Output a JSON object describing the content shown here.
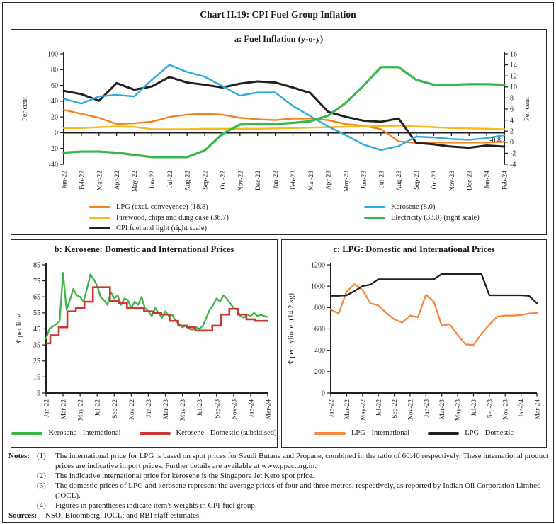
{
  "figure": {
    "title": "Chart II.19: CPI Fuel Group Inflation"
  },
  "colors": {
    "axis": "#231F20",
    "lpg_orange": "#F58220",
    "firewood_yellow": "#FDB913",
    "cpi_black": "#231F20",
    "kerosene_blue": "#29ABE2",
    "electricity_green": "#39B54A",
    "kerosene_intl_green": "#3BB54A",
    "kerosene_dom_red": "#CB3734",
    "lpg_intl_orange": "#F6873C",
    "lpg_dom_black": "#231F20"
  },
  "chart_data": [
    {
      "id": "a",
      "type": "line",
      "title": "a: Fuel Inflation (y-o-y)",
      "x_labels": [
        "Jan-22",
        "Feb-22",
        "Mar-22",
        "Apr-22",
        "May-22",
        "Jun-22",
        "Jul-22",
        "Aug-22",
        "Sep-22",
        "Oct-22",
        "Nov-22",
        "Dec-22",
        "Jan-23",
        "Feb-23",
        "Mar-23",
        "Apr-23",
        "May-23",
        "Jun-23",
        "Jul-23",
        "Aug-23",
        "Sep-23",
        "Oct-23",
        "Nov-23",
        "Dec-23",
        "Jan-24",
        "Feb-24"
      ],
      "label_every": 1,
      "x_axis_at": 0,
      "left_axis": {
        "min": -40,
        "max": 100,
        "step": 20,
        "label": "Per cent"
      },
      "right_axis": {
        "min": -4,
        "max": 16,
        "step": 2,
        "label": "Per cent"
      },
      "series": [
        {
          "name": "LPG (excl. conveyence) (18.8)",
          "color": "#F58220",
          "axis": "left",
          "width": 2.4,
          "values": [
            29,
            24,
            19,
            11,
            12,
            14,
            20,
            23,
            24,
            23,
            19,
            17,
            16,
            18,
            18,
            16,
            11,
            9,
            4.5,
            -11,
            -13,
            -12.5,
            -12.5,
            -12.5,
            -12.5,
            -11.5
          ]
        },
        {
          "name": "Firewood, chips and dung cake (36.7)",
          "color": "#FDB913",
          "axis": "left",
          "width": 2.4,
          "values": [
            6,
            6,
            7,
            8,
            7.5,
            4.5,
            4.5,
            4.5,
            5,
            5,
            5,
            5,
            5.5,
            6,
            6.5,
            7,
            7.5,
            8,
            8.5,
            9,
            8,
            7,
            6,
            5.5,
            5,
            4.5
          ]
        },
        {
          "name": "CPI fuel and light (right scale)",
          "color": "#231F20",
          "axis": "right",
          "width": 3,
          "values": [
            9.3,
            8.7,
            7.5,
            10.7,
            9.5,
            10.1,
            11.8,
            10.8,
            10.4,
            9.9,
            10.6,
            11.0,
            10.8,
            9.9,
            8.9,
            5.5,
            4.6,
            3.9,
            3.7,
            4.3,
            -0.1,
            -0.4,
            -0.8,
            -1.0,
            -0.6,
            -0.8
          ]
        },
        {
          "name": "Kerosene (8.0)",
          "color": "#29ABE2",
          "axis": "left",
          "width": 2.4,
          "values": [
            43,
            37,
            46,
            48,
            46,
            67,
            86,
            77,
            71,
            59,
            47,
            51,
            51,
            34,
            21,
            8,
            -3,
            -15,
            -22,
            -17,
            -5,
            -6,
            -8,
            -9,
            -7,
            -3
          ]
        },
        {
          "name": "Electricity (33.0) (right scale)",
          "color": "#39B54A",
          "axis": "right",
          "width": 3.2,
          "values": [
            -1.9,
            -1.7,
            -1.7,
            -1.9,
            -2.3,
            -2.7,
            -2.7,
            -2.7,
            -1.5,
            1.5,
            3.2,
            3.3,
            3.3,
            3.5,
            3.8,
            4.8,
            7.1,
            10.2,
            13.6,
            13.6,
            11.3,
            10.4,
            10.4,
            10.5,
            10.5,
            10.4
          ]
        }
      ],
      "annotation": {
        "text": "-0.8",
        "x_index": 25,
        "axis": "right",
        "value": -0.8
      }
    },
    {
      "id": "b",
      "type": "line",
      "title": "b: Kerosene: Domestic and International Prices",
      "x_labels": [
        "Jan-22",
        "Feb-22",
        "Mar-22",
        "Apr-22",
        "May-22",
        "Jun-22",
        "Jul-22",
        "Aug-22",
        "Sep-22",
        "Oct-22",
        "Nov-22",
        "Dec-22",
        "Jan-23",
        "Feb-23",
        "Mar-23",
        "Apr-23",
        "May-23",
        "Jun-23",
        "Jul-23",
        "Aug-23",
        "Sep-23",
        "Oct-23",
        "Nov-23",
        "Dec-23",
        "Jan-24",
        "Feb-24",
        "Mar-24"
      ],
      "label_every": 2,
      "x_axis_at": 5,
      "left_axis": {
        "min": 5,
        "max": 85,
        "step": 10,
        "label": "₹ per litre"
      },
      "series": [
        {
          "name": "Kerosene - International",
          "color": "#3BB54A",
          "axis": "left",
          "width": 2.3,
          "values": [
            39,
            45,
            46.5,
            48,
            50,
            80,
            57,
            63,
            70,
            66,
            65,
            62,
            70,
            79,
            76,
            72,
            65,
            63,
            60,
            68,
            64,
            66,
            60,
            64,
            63,
            58,
            62,
            60,
            65,
            58,
            56,
            53,
            58,
            55,
            52,
            56,
            53,
            54,
            50,
            48,
            46,
            47,
            45,
            44.5,
            46,
            45,
            47,
            52,
            57,
            60,
            64,
            62,
            66,
            64,
            61,
            58,
            57,
            53,
            52,
            54,
            53,
            55,
            53,
            54,
            53,
            52.5
          ]
        },
        {
          "name": "Kerosene - Domestic (subsidised)",
          "color": "#CB3734",
          "axis": "left",
          "width": 2.6,
          "step": true,
          "values": [
            36,
            41,
            46,
            56,
            58,
            62,
            71,
            71,
            62.5,
            61,
            58,
            58,
            56,
            55,
            54,
            50,
            47,
            46,
            44,
            44,
            47,
            54,
            57.5,
            54,
            51,
            50,
            50
          ]
        }
      ]
    },
    {
      "id": "c",
      "type": "line",
      "title": "c: LPG: Domestic and International Prices",
      "x_labels": [
        "Jan-22",
        "Feb-22",
        "Mar-22",
        "Apr-22",
        "May-22",
        "Jun-22",
        "Jul-22",
        "Aug-22",
        "Sep-22",
        "Oct-22",
        "Nov-22",
        "Dec-22",
        "Jan-23",
        "Feb-23",
        "Mar-23",
        "Apr-23",
        "May-23",
        "Jun-23",
        "Jul-23",
        "Aug-23",
        "Sep-23",
        "Oct-23",
        "Nov-23",
        "Dec-23",
        "Jan-24",
        "Feb-24",
        "Mar-24"
      ],
      "label_every": 2,
      "x_axis_at": 0,
      "left_axis": {
        "min": 0,
        "max": 1200,
        "step": 200,
        "label": "₹ per cylinder (14.2 kg)"
      },
      "series": [
        {
          "name": "LPG - International",
          "color": "#F6873C",
          "axis": "left",
          "width": 2.3,
          "values": [
            780,
            745,
            950,
            1020,
            965,
            840,
            820,
            750,
            690,
            660,
            725,
            710,
            920,
            855,
            630,
            645,
            545,
            455,
            450,
            555,
            640,
            715,
            725,
            725,
            730,
            745,
            750
          ]
        },
        {
          "name": "LPG - Domestic",
          "color": "#231F20",
          "axis": "left",
          "width": 2.3,
          "values": [
            910,
            910,
            915,
            955,
            1000,
            1015,
            1065,
            1065,
            1065,
            1065,
            1065,
            1065,
            1065,
            1065,
            1115,
            1115,
            1115,
            1115,
            1115,
            1115,
            915,
            915,
            915,
            915,
            915,
            910,
            840
          ]
        }
      ]
    }
  ],
  "notes": {
    "label": "Notes:",
    "items": [
      {
        "num": "(1)",
        "text": "The international price for LPG is based on spot prices for Saudi Butane and Propane, combined in the ratio of 60:40 respectively. These international product prices are indicative import prices. Further details are available at www.ppac.org.in."
      },
      {
        "num": "(2)",
        "text": "The indicative international price for kerosene is the Singapore Jet Kero spot price."
      },
      {
        "num": "(3)",
        "text": "The domestic prices of LPG and kerosene represent the average prices of four and three metros, respectively, as reported by Indian Oil Corporation Limited (IOCL)."
      },
      {
        "num": "(4)",
        "text": "Figures in parentheses indicate item's weights in CPI-fuel group."
      }
    ],
    "sources_label": "Sources:",
    "sources": "NSO; Bloomberg; IOCL; and RBI staff estimates."
  }
}
